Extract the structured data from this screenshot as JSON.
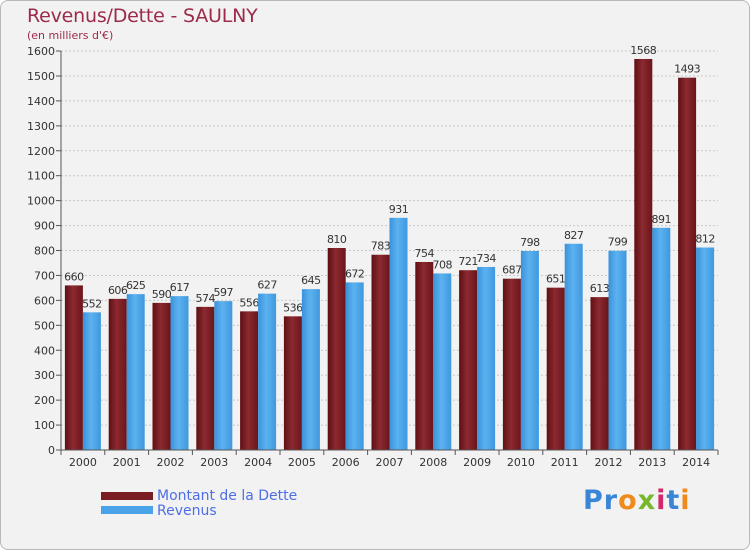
{
  "title": "Revenus/Dette - SAULNY",
  "subtitle": "(en milliers d'€)",
  "logo": "Proxiti",
  "chart_data": {
    "type": "bar",
    "categories": [
      "2000",
      "2001",
      "2002",
      "2003",
      "2004",
      "2005",
      "2006",
      "2007",
      "2008",
      "2009",
      "2010",
      "2011",
      "2012",
      "2013",
      "2014"
    ],
    "series": [
      {
        "name": "Montant de la Dette",
        "color": "#7a1d22",
        "values": [
          660,
          606,
          590,
          574,
          556,
          536,
          810,
          783,
          754,
          721,
          687,
          651,
          613,
          1568,
          1493
        ]
      },
      {
        "name": "Revenus",
        "color": "#4aa3e8",
        "values": [
          552,
          625,
          617,
          597,
          627,
          645,
          672,
          931,
          708,
          734,
          798,
          827,
          799,
          891,
          812
        ]
      }
    ],
    "ylim": [
      0,
      1600
    ],
    "yticks": [
      0,
      100,
      200,
      300,
      400,
      500,
      600,
      700,
      800,
      900,
      1000,
      1100,
      1200,
      1300,
      1400,
      1500,
      1600
    ],
    "grid": true,
    "legend": "bottom-left"
  }
}
